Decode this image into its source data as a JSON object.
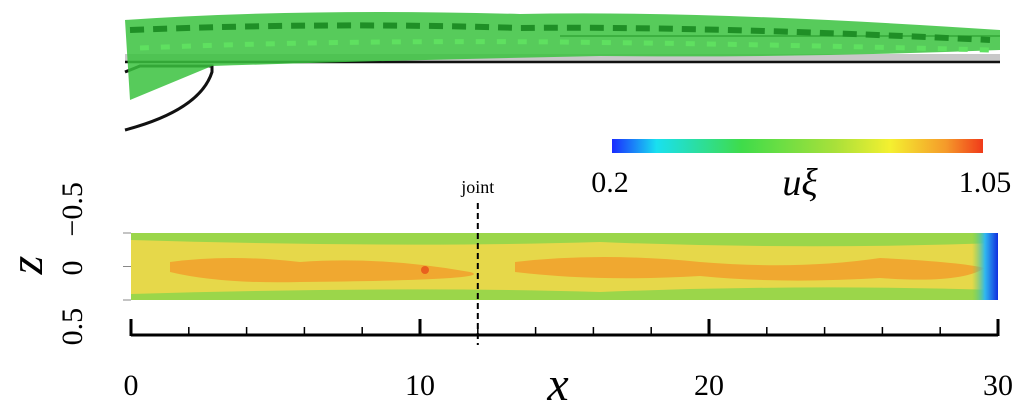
{
  "chart_data": {
    "type": "contour",
    "x_label": "x",
    "y_label": "z",
    "colorbar_label": "uξ",
    "xlim": [
      0,
      30
    ],
    "xticks": [
      0,
      10,
      20,
      30
    ],
    "xminorticks": [
      2,
      4,
      6,
      8,
      12,
      14,
      16,
      18,
      22,
      24,
      26,
      28
    ],
    "ylim": [
      0.5,
      -0.5
    ],
    "yticks": [
      {
        "value": 0.5,
        "label": "0.5"
      },
      0,
      {
        "value": -0.5,
        "label": "−0.5"
      }
    ],
    "colorbar_lim": [
      0.2,
      1.05
    ],
    "annotation": {
      "text": "joint",
      "x": 12
    }
  }
}
